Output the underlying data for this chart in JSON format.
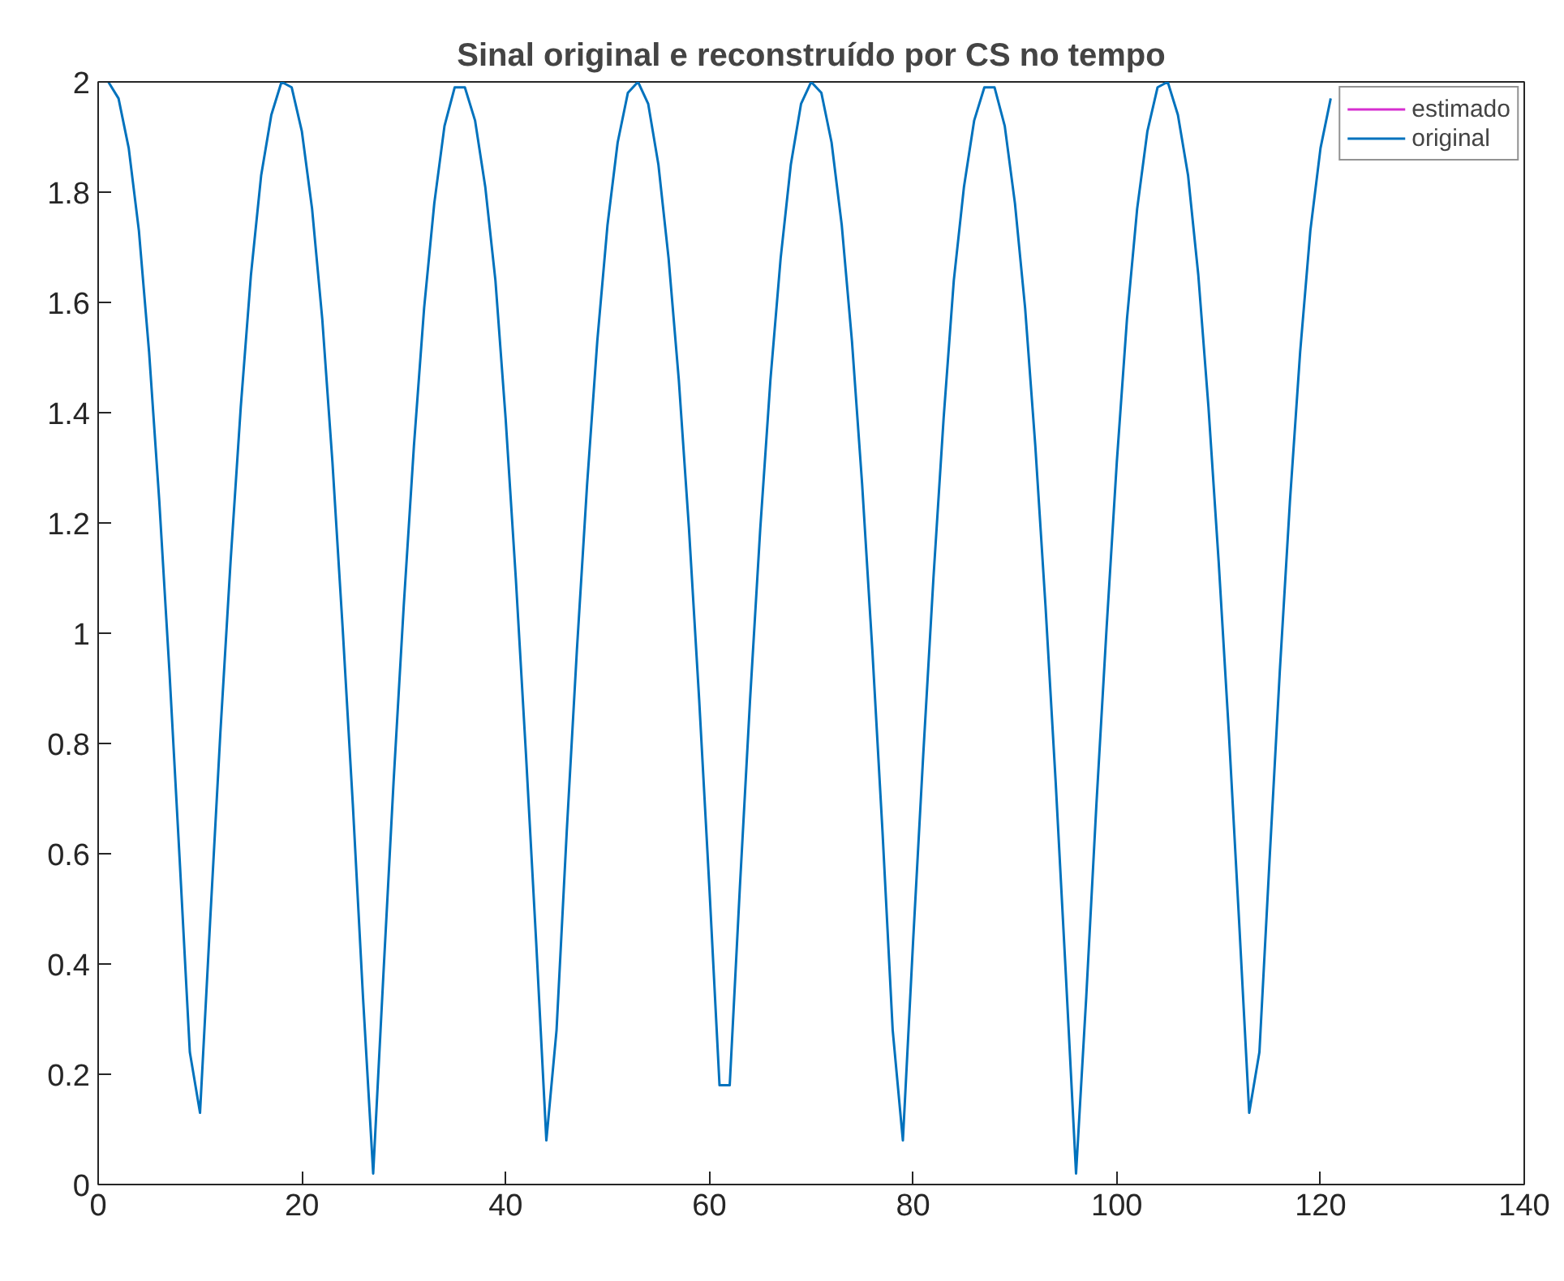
{
  "chart_data": {
    "type": "line",
    "title": "Sinal original e reconstruído por CS no tempo",
    "x": [
      1,
      2,
      3,
      4,
      5,
      6,
      7,
      8,
      9,
      10,
      11,
      12,
      13,
      14,
      15,
      16,
      17,
      18,
      19,
      20,
      21,
      22,
      23,
      24,
      25,
      26,
      27,
      28,
      29,
      30,
      31,
      32,
      33,
      34,
      35,
      36,
      37,
      38,
      39,
      40,
      41,
      42,
      43,
      44,
      45,
      46,
      47,
      48,
      49,
      50,
      51,
      52,
      53,
      54,
      55,
      56,
      57,
      58,
      59,
      60,
      61,
      62,
      63,
      64,
      65,
      66,
      67,
      68,
      69,
      70,
      71,
      72,
      73,
      74,
      75,
      76,
      77,
      78,
      79,
      80,
      81,
      82,
      83,
      84,
      85,
      86,
      87,
      88,
      89,
      90,
      91,
      92,
      93,
      94,
      95,
      96,
      97,
      98,
      99,
      100,
      101,
      102,
      103,
      104,
      105,
      106,
      107,
      108,
      109,
      110,
      111,
      112,
      113,
      114,
      115,
      116,
      117,
      118,
      119,
      120,
      121
    ],
    "series": [
      {
        "name": "estimado",
        "color": "#d62fd0",
        "values": [
          null,
          null,
          null,
          null,
          null,
          null,
          null,
          null,
          null,
          null,
          null,
          null,
          null,
          null,
          null,
          null,
          null,
          null,
          null,
          null,
          null,
          null,
          null,
          null,
          null,
          null,
          null,
          null,
          null,
          null,
          null,
          null,
          null,
          null,
          null,
          null,
          null,
          null,
          null,
          null,
          null,
          null,
          null,
          null,
          null,
          null,
          null,
          null,
          null,
          null,
          null,
          null,
          null,
          null,
          null,
          null,
          null,
          null,
          null,
          null,
          null,
          null,
          null,
          null,
          null,
          null,
          null,
          null,
          null,
          null,
          null,
          null,
          null,
          null,
          null,
          null,
          null,
          null,
          null,
          null,
          null,
          null,
          null,
          null,
          null,
          null,
          null,
          null,
          null,
          null,
          null,
          null,
          null,
          null,
          null,
          null,
          null,
          null,
          null,
          null,
          null,
          null,
          null,
          null,
          null,
          null,
          null,
          null,
          null,
          null,
          null,
          null,
          null,
          null,
          null,
          null,
          null,
          null,
          null,
          null,
          null
        ]
      },
      {
        "name": "original",
        "color": "#0072bd",
        "values": [
          2.0,
          1.97,
          1.88,
          1.73,
          1.51,
          1.24,
          0.93,
          0.59,
          0.24,
          0.13,
          0.48,
          0.82,
          1.13,
          1.41,
          1.65,
          1.83,
          1.94,
          2.0,
          1.99,
          1.91,
          1.77,
          1.57,
          1.31,
          1.01,
          0.69,
          0.34,
          0.02,
          0.38,
          0.73,
          1.05,
          1.34,
          1.59,
          1.78,
          1.92,
          1.99,
          1.99,
          1.93,
          1.81,
          1.64,
          1.39,
          1.1,
          0.78,
          0.44,
          0.08,
          0.28,
          0.64,
          0.97,
          1.27,
          1.53,
          1.74,
          1.89,
          1.98,
          2.0,
          1.96,
          1.85,
          1.68,
          1.46,
          1.19,
          0.88,
          0.54,
          0.18,
          0.18,
          0.54,
          0.88,
          1.19,
          1.46,
          1.68,
          1.85,
          1.96,
          2.0,
          1.98,
          1.89,
          1.74,
          1.53,
          1.27,
          0.97,
          0.64,
          0.28,
          0.08,
          0.44,
          0.78,
          1.1,
          1.39,
          1.64,
          1.81,
          1.93,
          1.99,
          1.99,
          1.92,
          1.78,
          1.59,
          1.34,
          1.05,
          0.73,
          0.38,
          0.02,
          0.34,
          0.69,
          1.01,
          1.31,
          1.57,
          1.77,
          1.91,
          1.99,
          2.0,
          1.94,
          1.83,
          1.65,
          1.41,
          1.13,
          0.82,
          0.48,
          0.13,
          0.24,
          0.59,
          0.93,
          1.24,
          1.51,
          1.73,
          1.88,
          1.97
        ]
      }
    ],
    "xlim": [
      0,
      140
    ],
    "xticks": [
      0,
      20,
      40,
      60,
      80,
      100,
      120,
      140
    ],
    "ylim": [
      0,
      2
    ],
    "yticks": [
      0,
      0.2,
      0.4,
      0.6,
      0.8,
      1,
      1.2,
      1.4,
      1.6,
      1.8,
      2
    ],
    "grid": false,
    "legend": "top right",
    "marker": "none",
    "line_style": "solid"
  }
}
